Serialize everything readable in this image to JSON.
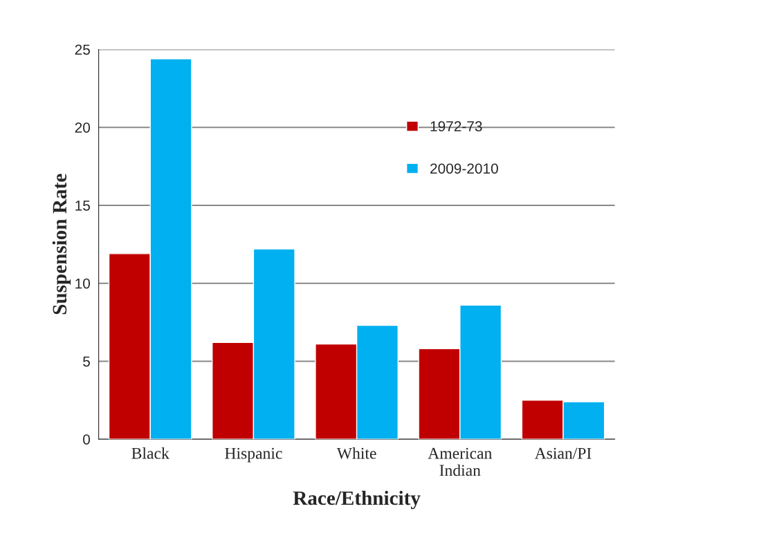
{
  "chart_data": {
    "type": "bar",
    "xlabel": "Race/Ethnicity",
    "ylabel": "Suspension Rate",
    "categories": [
      "Black",
      "Hispanic",
      "White",
      "American\nIndian",
      "Asian/PI"
    ],
    "series": [
      {
        "name": "1972-73",
        "color": "#c00000",
        "values": [
          11.9,
          6.2,
          6.1,
          5.8,
          2.5
        ]
      },
      {
        "name": "2009-2010",
        "color": "#00b0f0",
        "values": [
          24.4,
          12.2,
          7.3,
          8.6,
          2.4
        ]
      }
    ],
    "ylim": [
      0,
      25
    ],
    "yticks": [
      0,
      5,
      10,
      15,
      20,
      25
    ],
    "grid": "y",
    "legend": "top right"
  }
}
